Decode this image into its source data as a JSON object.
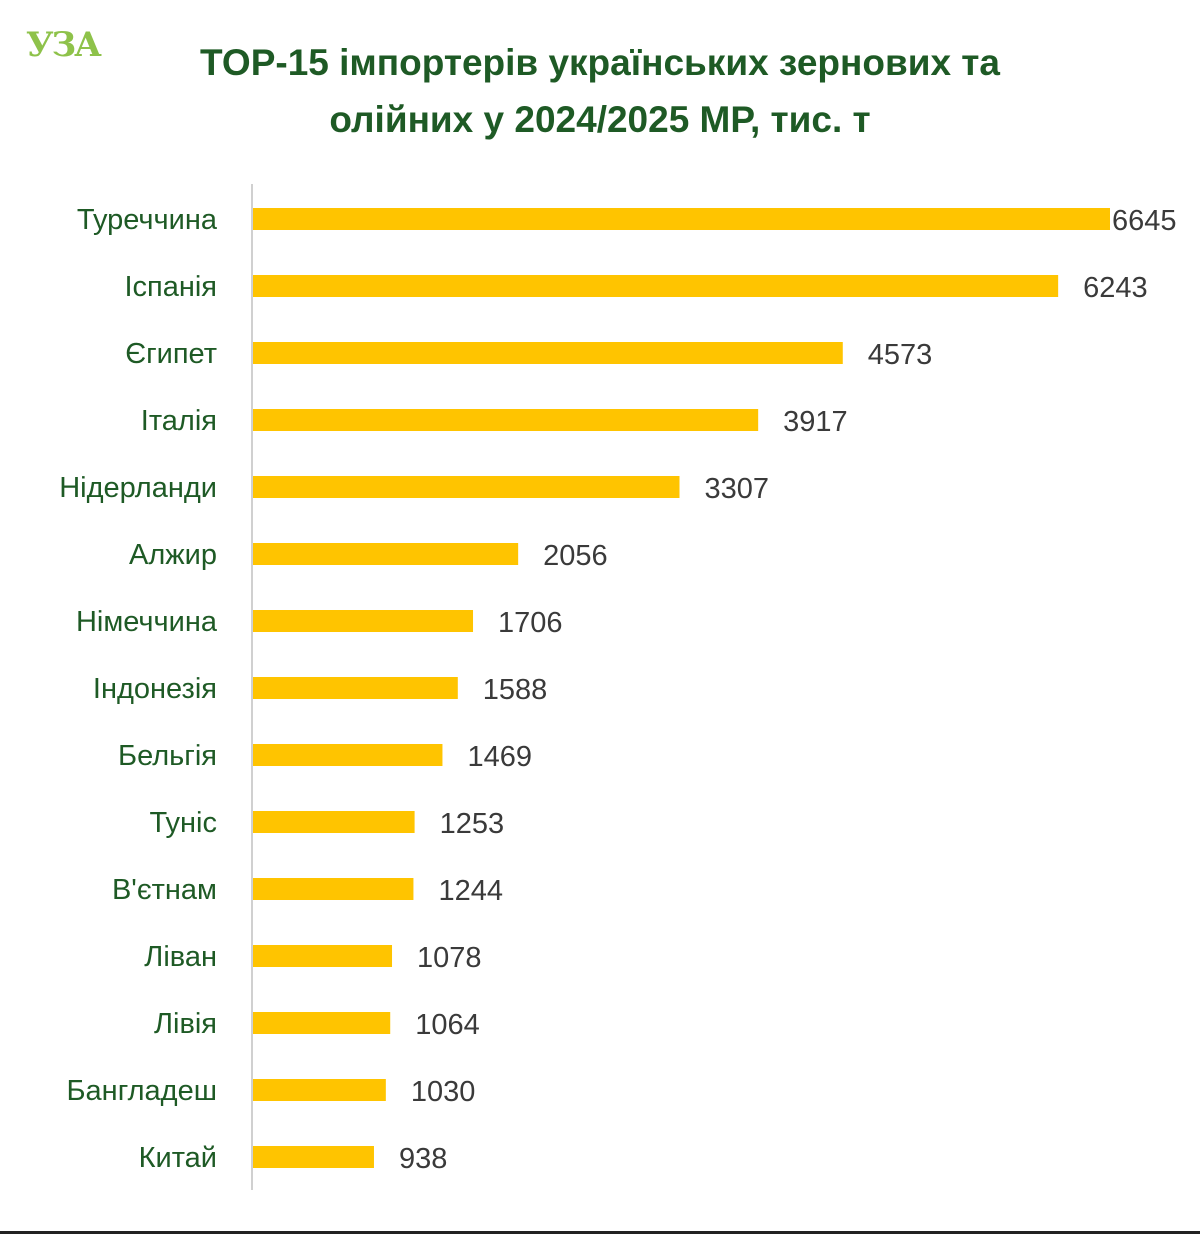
{
  "header": {
    "logo_text": "УЗА",
    "title_line1": "TOP-15 імпортерів українських зернових та",
    "title_line2": "олійних у 2024/2025 МР, тис. т"
  },
  "colors": {
    "bar": "#FFC400",
    "title": "#1E5A25",
    "category_label": "#1E5A25",
    "value_label": "#3A3A3A",
    "axis": "#D0D0D0",
    "logo": "#8EC24A"
  },
  "chart_data": {
    "type": "bar",
    "orientation": "horizontal",
    "title": "TOP-15 імпортерів українських зернових та олійних у 2024/2025 МР, тис. т",
    "xlabel": "",
    "ylabel": "",
    "categories": [
      "Туреччина",
      "Іспанія",
      "Єгипет",
      "Італія",
      "Нідерланди",
      "Алжир",
      "Німеччина",
      "Індонезія",
      "Бельгія",
      "Туніс",
      "В'єтнам",
      "Ліван",
      "Лівія",
      "Бангладеш",
      "Китай"
    ],
    "values": [
      6645,
      6243,
      4573,
      3917,
      3307,
      2056,
      1706,
      1588,
      1469,
      1253,
      1244,
      1078,
      1064,
      1030,
      938
    ],
    "value_labels": [
      "6645",
      "6243",
      "4573",
      "3917",
      "3307",
      "2056",
      "1706",
      "1588",
      "1469",
      "1253",
      "1244",
      "1078",
      "1064",
      "1030",
      "938"
    ],
    "xlim": [
      0,
      6645
    ],
    "grid": false,
    "legend": "none",
    "data_labels": true
  }
}
